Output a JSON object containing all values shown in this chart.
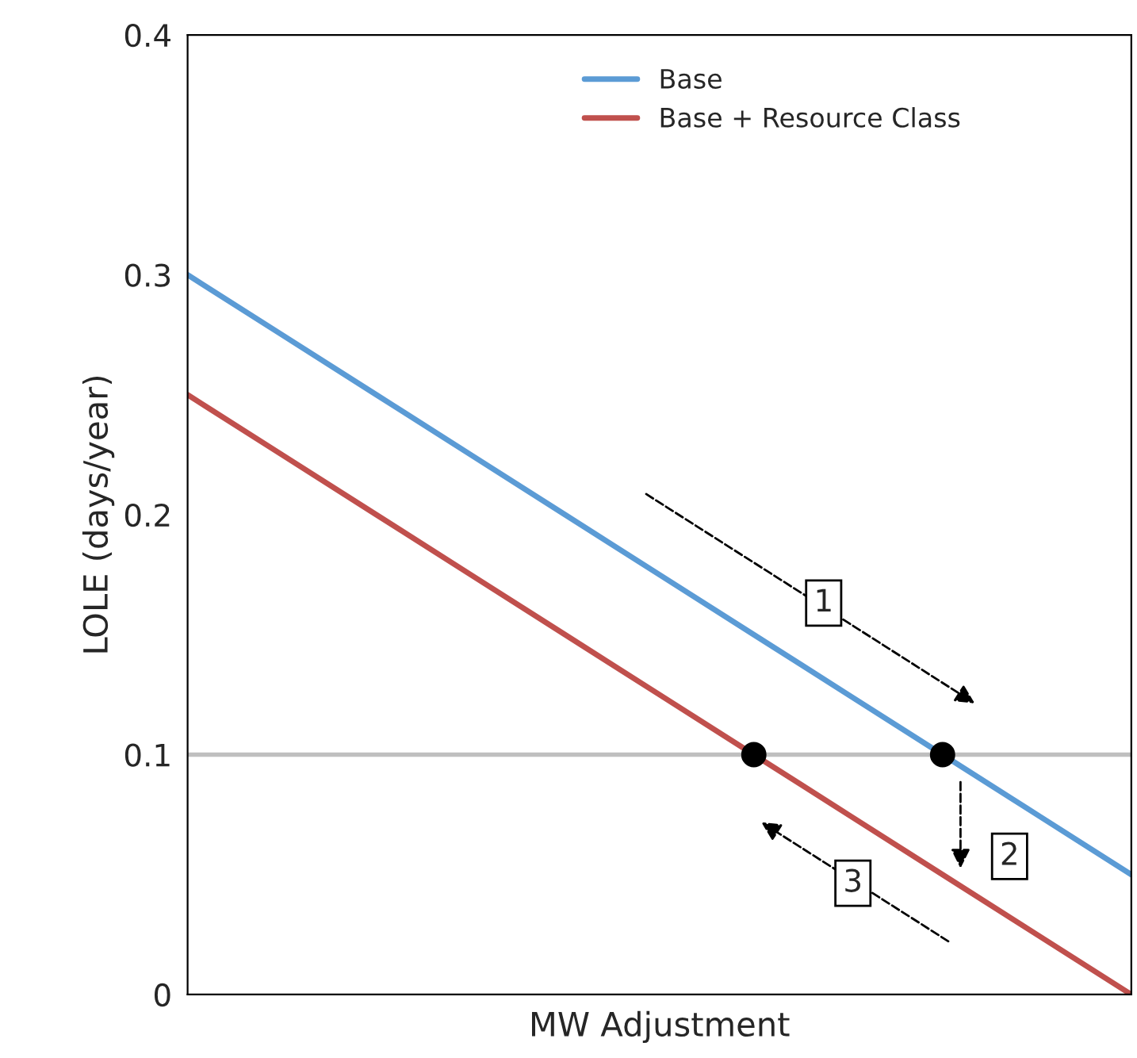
{
  "chart_data": {
    "type": "line",
    "xlabel": "MW Adjustment",
    "ylabel": "LOLE (days/year)",
    "categories": [
      null,
      null,
      null,
      null,
      null,
      null,
      null,
      null,
      null,
      null,
      null
    ],
    "ylim": [
      0,
      0.4
    ],
    "yticks": [
      0,
      0.1,
      0.2,
      0.3,
      0.4
    ],
    "grid": false,
    "legend": "top",
    "marker": "none",
    "line_style": "solid",
    "series": [
      {
        "name": "Base",
        "color": "#5b9bd5",
        "values": [
          0.3,
          0.275,
          0.25,
          0.225,
          0.2,
          0.175,
          0.15,
          0.125,
          0.1,
          0.075,
          0.05
        ]
      },
      {
        "name": "Base + Resource Class",
        "color": "#c0504d",
        "values": [
          0.25,
          0.225,
          0.2,
          0.175,
          0.15,
          0.125,
          0.1,
          0.075,
          0.05,
          0.025,
          0
        ]
      },
      {
        "type": "scatter",
        "marker": "circle",
        "color": "#000000",
        "values": [
          null,
          null,
          null,
          null,
          null,
          null,
          0.1,
          null,
          0.1,
          null,
          null
        ]
      }
    ],
    "ref_lines": [
      {
        "axis": "y",
        "value": 0.1,
        "color": "#bfbfbf",
        "line_style": "solid"
      }
    ],
    "annotations": [
      "1",
      "2",
      "3"
    ]
  }
}
